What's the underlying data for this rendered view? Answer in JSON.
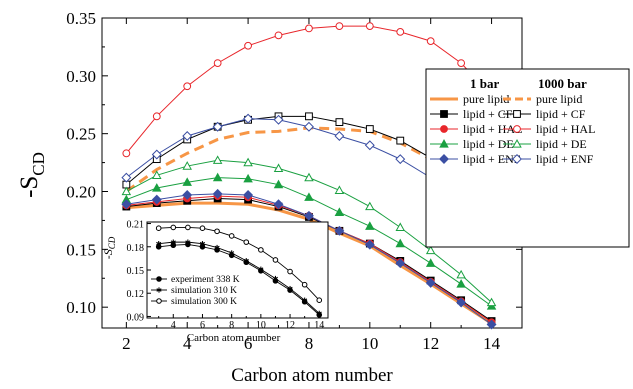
{
  "chart_data": [
    {
      "type": "line",
      "title": "",
      "xlabel": "Carbon atom number",
      "ylabel": "-S",
      "ylabel_sub": "CD",
      "xlim": [
        1.2,
        15
      ],
      "ylim": [
        0.082,
        0.35
      ],
      "x_ticks": [
        2,
        4,
        6,
        8,
        10,
        12,
        14
      ],
      "y_ticks": [
        0.1,
        0.15,
        0.2,
        0.25,
        0.3,
        0.35
      ],
      "y_tick_labels": [
        "0.10",
        "0.15",
        "0.20",
        "0.25",
        "0.30",
        "0.35"
      ],
      "grid": false,
      "legend_placement": "right",
      "legend": {
        "column_headers": [
          "1 bar",
          "1000 bar"
        ],
        "entries": [
          {
            "series": "pure lipid (1 bar)",
            "label": "pure lipid"
          },
          {
            "series": "pure lipid (1000 bar)",
            "label": "pure lipid"
          },
          {
            "series": "lipid + CF (1 bar)",
            "label": "lipid +  CF"
          },
          {
            "series": "lipid + CF (1000 bar)",
            "label": "lipid +  CF"
          },
          {
            "series": "lipid + HAL (1 bar)",
            "label": "lipid + HAL"
          },
          {
            "series": "lipid + HAL (1000 bar)",
            "label": "lipid + HAL"
          },
          {
            "series": "lipid + DE (1 bar)",
            "label": "lipid +  DE"
          },
          {
            "series": "lipid + DE (1000 bar)",
            "label": "lipid +  DE"
          },
          {
            "series": "lipid + ENF (1 bar)",
            "label": "lipid + ENF"
          },
          {
            "series": "lipid + ENF (1000 bar)",
            "label": "lipid + ENF"
          }
        ]
      },
      "x": [
        2,
        3,
        4,
        5,
        6,
        7,
        8,
        9,
        10,
        11,
        12,
        13,
        14
      ],
      "series": [
        {
          "name": "pure lipid (1 bar)",
          "color": "#f79646",
          "marker": "none",
          "dash": "solid",
          "values": [
            0.186,
            0.188,
            0.19,
            0.19,
            0.189,
            0.184,
            0.176,
            0.164,
            0.153,
            0.136,
            0.12,
            0.103,
            0.086
          ]
        },
        {
          "name": "pure lipid (1000 bar)",
          "color": "#f79646",
          "marker": "none",
          "dash": "dashed",
          "values": [
            0.2,
            0.219,
            0.233,
            0.245,
            0.251,
            0.252,
            0.255,
            0.254,
            0.252,
            0.242,
            0.228,
            0.207,
            0.179
          ]
        },
        {
          "name": "lipid + CF (1 bar)",
          "color": "#000000",
          "marker": "square-filled",
          "dash": "solid",
          "values": [
            0.187,
            0.19,
            0.192,
            0.194,
            0.193,
            0.187,
            0.178,
            0.166,
            0.155,
            0.14,
            0.123,
            0.106,
            0.088
          ]
        },
        {
          "name": "lipid + CF (1000 bar)",
          "color": "#000000",
          "marker": "square-open",
          "dash": "solid",
          "values": [
            0.206,
            0.228,
            0.245,
            0.256,
            0.262,
            0.265,
            0.265,
            0.26,
            0.254,
            0.244,
            0.229,
            0.208,
            0.174
          ]
        },
        {
          "name": "lipid + HAL (1 bar)",
          "color": "#e8262b",
          "marker": "circle-filled",
          "dash": "solid",
          "values": [
            0.188,
            0.191,
            0.194,
            0.196,
            0.195,
            0.188,
            0.179,
            0.166,
            0.155,
            0.139,
            0.122,
            0.105,
            0.087
          ]
        },
        {
          "name": "lipid + HAL (1000 bar)",
          "color": "#e8262b",
          "marker": "circle-open",
          "dash": "solid",
          "values": [
            0.233,
            0.265,
            0.291,
            0.311,
            0.326,
            0.335,
            0.341,
            0.343,
            0.343,
            0.338,
            0.33,
            0.311,
            0.283
          ]
        },
        {
          "name": "lipid + DE (1 bar)",
          "color": "#1aa041",
          "marker": "triangle-filled",
          "dash": "solid",
          "values": [
            0.193,
            0.203,
            0.208,
            0.212,
            0.211,
            0.206,
            0.195,
            0.182,
            0.17,
            0.155,
            0.138,
            0.12,
            0.101
          ]
        },
        {
          "name": "lipid + DE (1000 bar)",
          "color": "#1aa041",
          "marker": "triangle-open",
          "dash": "solid",
          "values": [
            0.2,
            0.214,
            0.222,
            0.227,
            0.225,
            0.22,
            0.212,
            0.201,
            0.187,
            0.169,
            0.149,
            0.128,
            0.104
          ]
        },
        {
          "name": "lipid + ENF (1 bar)",
          "color": "#3b4fa3",
          "marker": "diamond-filled",
          "dash": "solid",
          "values": [
            0.189,
            0.193,
            0.197,
            0.198,
            0.197,
            0.189,
            0.179,
            0.166,
            0.154,
            0.138,
            0.121,
            0.104,
            0.085
          ]
        },
        {
          "name": "lipid + ENF (1000 bar)",
          "color": "#3b4fa3",
          "marker": "diamond-open",
          "dash": "solid",
          "values": [
            0.212,
            0.232,
            0.248,
            0.256,
            0.263,
            0.262,
            0.256,
            0.248,
            0.24,
            0.228,
            0.212,
            0.19,
            0.157
          ]
        }
      ]
    },
    {
      "type": "line",
      "title": "",
      "xlabel": "Carbon atom number",
      "ylabel": "-S",
      "ylabel_sub": "CD",
      "xlim": [
        2.2,
        14.6
      ],
      "ylim": [
        0.088,
        0.212
      ],
      "x_ticks": [
        4,
        6,
        8,
        10,
        12,
        14
      ],
      "x_minor_ticks": [
        3,
        5,
        7,
        9,
        11,
        13
      ],
      "y_ticks": [
        0.09,
        0.12,
        0.15,
        0.18,
        0.21
      ],
      "y_tick_labels": [
        "0.09",
        "0.12",
        "0.15",
        "0.18",
        "0.21"
      ],
      "grid": false,
      "legend_placement": "bottom-left",
      "x": [
        3,
        4,
        5,
        6,
        7,
        8,
        9,
        10,
        11,
        12,
        13,
        14
      ],
      "series": [
        {
          "name": "experiment 338 K",
          "color": "#000000",
          "marker": "circle-filled",
          "values": [
            0.18,
            0.182,
            0.183,
            0.18,
            0.176,
            0.169,
            0.16,
            0.149,
            0.136,
            0.124,
            0.109,
            0.092
          ]
        },
        {
          "name": "simulation  310 K",
          "color": "#000000",
          "marker": "star",
          "values": [
            0.184,
            0.186,
            0.186,
            0.184,
            0.179,
            0.172,
            0.162,
            0.151,
            0.139,
            0.126,
            0.111,
            0.094
          ]
        },
        {
          "name": "simulation  300 K",
          "color": "#000000",
          "marker": "circle-open",
          "values": [
            0.204,
            0.205,
            0.205,
            0.204,
            0.2,
            0.194,
            0.186,
            0.176,
            0.163,
            0.148,
            0.131,
            0.111
          ]
        }
      ]
    }
  ]
}
